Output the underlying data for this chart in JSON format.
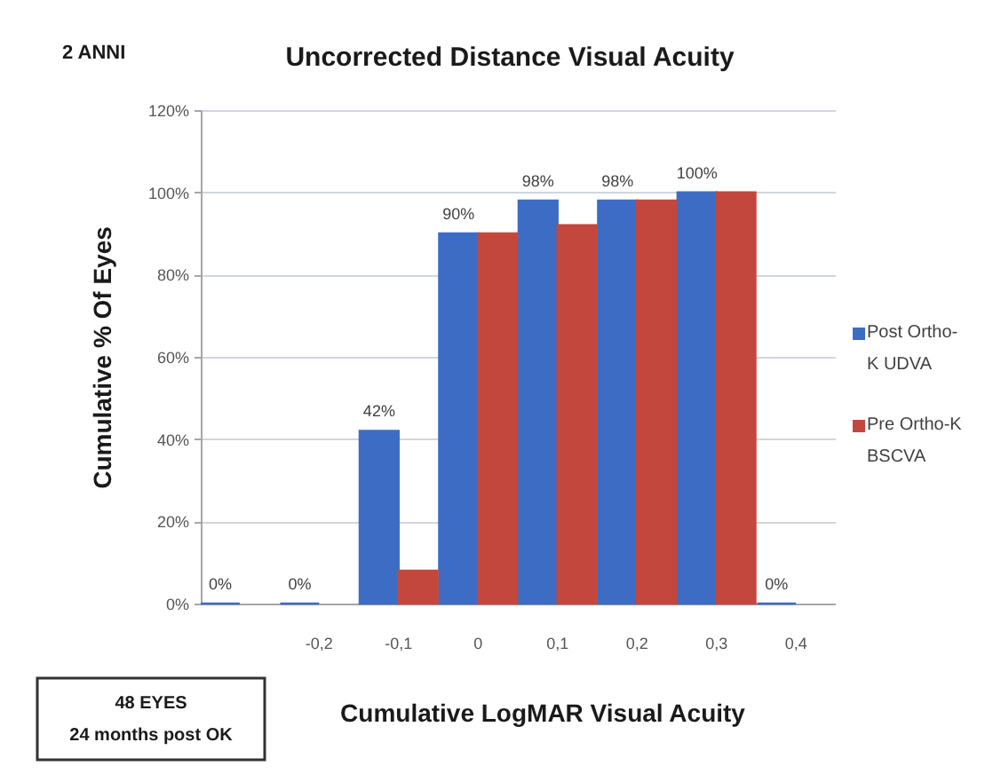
{
  "chart_data": {
    "type": "bar",
    "title": "Uncorrected Distance Visual Acuity",
    "xlabel": "Cumulative LogMAR Visual Acuity",
    "ylabel": "Cumulative % Of Eyes",
    "annotations": [
      "2 ANNI",
      "48 EYES\n24 months post OK"
    ],
    "categories": [
      null,
      "-0,2",
      "-0,1",
      "0",
      "0,1",
      "0,2",
      "0,3",
      "0,4"
    ],
    "series": [
      {
        "name": "Post Ortho-K UDVA",
        "color": "#3d6cc5",
        "values": [
          0,
          0,
          42,
          90,
          98,
          98,
          100,
          0
        ],
        "value_labels": [
          "0%",
          "0%",
          "42%",
          "90%",
          "98%",
          "98%",
          "100%",
          "0%"
        ]
      },
      {
        "name": "Pre Ortho-K BSCVA",
        "color": "#c4473d",
        "values": [
          null,
          null,
          8,
          90,
          92,
          98,
          100,
          null
        ]
      }
    ],
    "ylim": [
      0,
      120
    ],
    "yticks": [
      {
        "value": 0,
        "label": "0%"
      },
      {
        "value": 20,
        "label": "20%"
      },
      {
        "value": 40,
        "label": "40%"
      },
      {
        "value": 60,
        "label": "60%"
      },
      {
        "value": 80,
        "label": "80%"
      },
      {
        "value": 100,
        "label": "100%"
      },
      {
        "value": 120,
        "label": "120%"
      }
    ],
    "grid": "y",
    "legend": "right"
  }
}
